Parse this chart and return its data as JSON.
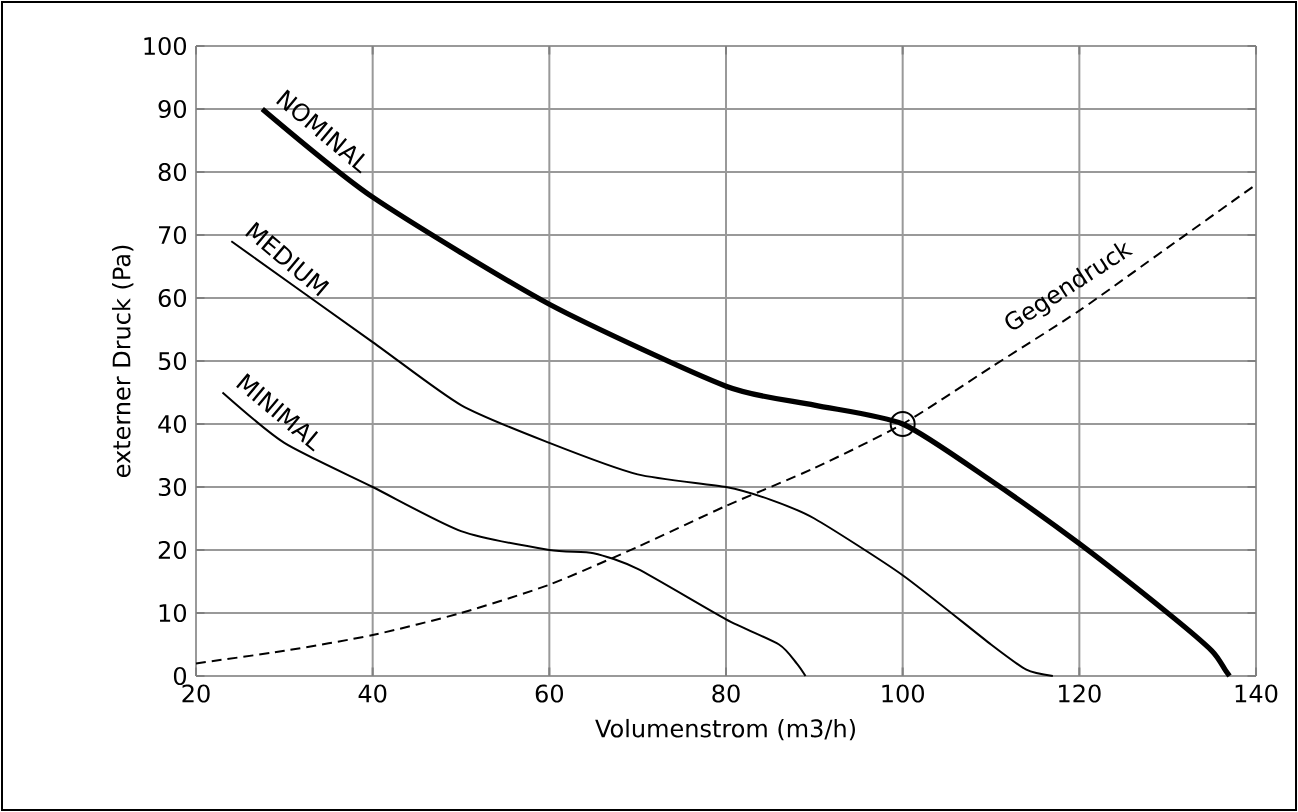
{
  "chart_data": {
    "type": "line",
    "xlabel": "Volumenstrom (m3/h)",
    "ylabel": "externer Druck (Pa)",
    "xlim": [
      20,
      140
    ],
    "xticks": [
      20,
      40,
      60,
      80,
      100,
      120,
      140
    ],
    "ylim": [
      0,
      100
    ],
    "yticks": [
      0,
      10,
      20,
      30,
      40,
      50,
      60,
      70,
      80,
      90,
      100
    ],
    "grid": true,
    "marker": "none",
    "series": [
      {
        "name": "NOMINAL",
        "color": "#000000",
        "line_style": "solid",
        "x": [
          27.5,
          40,
          60,
          80,
          90,
          100,
          110,
          120,
          130,
          135,
          136.5,
          137
        ],
        "values": [
          90,
          76,
          59,
          46,
          43,
          40,
          31,
          21,
          10,
          4,
          1,
          0
        ]
      },
      {
        "name": "MEDIUM",
        "color": "#000000",
        "line_style": "solid",
        "x": [
          24,
          40,
          50,
          60,
          70,
          80,
          85,
          90,
          100,
          110,
          114,
          117
        ],
        "values": [
          69,
          53,
          43,
          37,
          32,
          30,
          28,
          25,
          16,
          5,
          1,
          0
        ]
      },
      {
        "name": "MINIMAL",
        "color": "#000000",
        "line_style": "solid",
        "x": [
          23,
          30,
          40,
          50,
          60,
          65,
          70,
          80,
          86,
          88,
          89
        ],
        "values": [
          45,
          37,
          30,
          23,
          20,
          19.5,
          17,
          9,
          5,
          2,
          0
        ]
      },
      {
        "name": "Gegendruck",
        "color": "#000000",
        "line_style": "dashed",
        "x": [
          20,
          30,
          40,
          50,
          60,
          70,
          80,
          90,
          100,
          110,
          120,
          130,
          140
        ],
        "values": [
          2,
          4,
          6.5,
          10,
          14.5,
          20.5,
          27,
          33,
          40,
          49,
          58,
          68,
          78
        ]
      },
      {
        "type": "scatter",
        "marker": "circle",
        "color": "#000000",
        "x": [
          100
        ],
        "values": [
          40
        ]
      }
    ]
  }
}
